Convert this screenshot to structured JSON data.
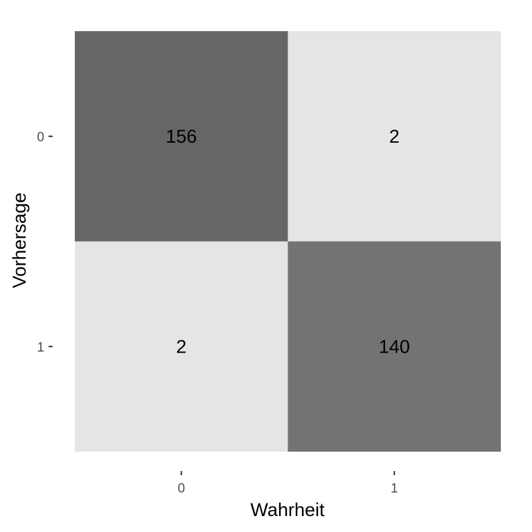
{
  "chart_data": {
    "type": "heatmap",
    "title": "",
    "xlabel": "Wahrheit",
    "ylabel": "Vorhersage",
    "x_categories": [
      "0",
      "1"
    ],
    "y_categories": [
      "0",
      "1"
    ],
    "cells": [
      {
        "x": "0",
        "y": "0",
        "value": 156,
        "color": "#666666"
      },
      {
        "x": "1",
        "y": "0",
        "value": 2,
        "color": "#e5e5e5"
      },
      {
        "x": "0",
        "y": "1",
        "value": 2,
        "color": "#e5e5e5"
      },
      {
        "x": "1",
        "y": "1",
        "value": 140,
        "color": "#737373"
      }
    ],
    "grid": false,
    "legend": "none"
  }
}
